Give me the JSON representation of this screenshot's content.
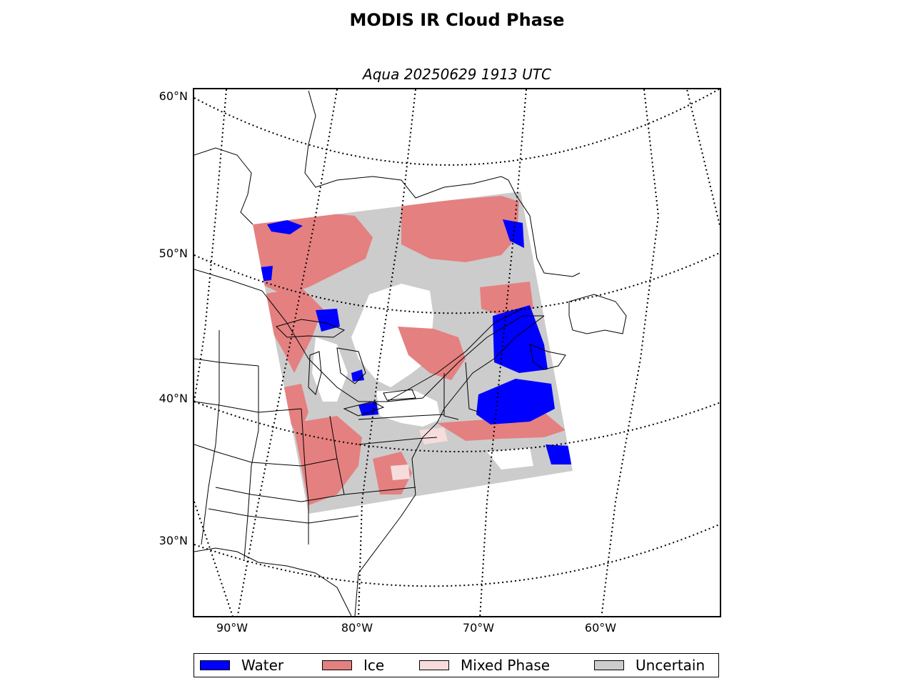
{
  "title": "MODIS IR Cloud Phase",
  "subtitle": "Aqua 20250629 1913 UTC",
  "lat_labels": [
    "60°N",
    "50°N",
    "40°N",
    "30°N"
  ],
  "lon_labels": [
    "90°W",
    "80°W",
    "70°W",
    "60°W"
  ],
  "legend": [
    {
      "label": "Water",
      "color": "#0000ff"
    },
    {
      "label": "Ice",
      "color": "#e58080"
    },
    {
      "label": "Mixed Phase",
      "color": "#f7dcdc"
    },
    {
      "label": "Uncertain",
      "color": "#cccccc"
    }
  ],
  "colors": {
    "water": "#0000ff",
    "ice": "#e58080",
    "mixed_phase": "#f7dcdc",
    "uncertain": "#cccccc",
    "clear": "#ffffff"
  }
}
